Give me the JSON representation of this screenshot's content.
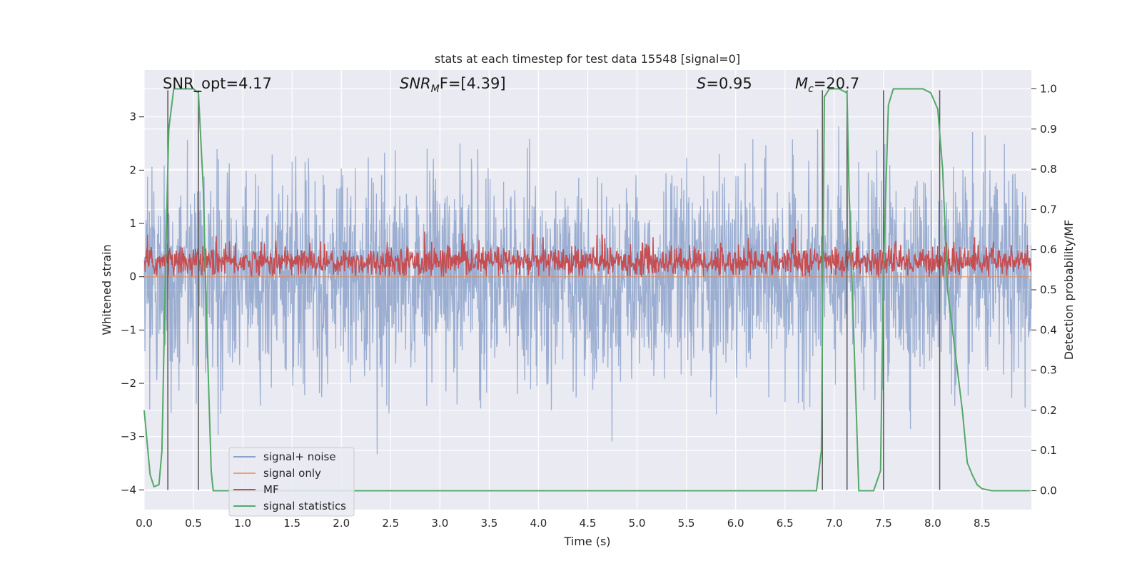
{
  "chart_data": {
    "type": "line",
    "title": "stats at each timestep for test data 15548 [signal=0]",
    "xlabel": "Time (s)",
    "ylabel_left": "Whitened strain",
    "ylabel_right": "Detection probability/MF",
    "xlim": [
      0.0,
      9.0
    ],
    "ylim_left": [
      -4.37,
      3.88
    ],
    "ylim_right": [
      -0.047,
      1.047
    ],
    "x_ticks": [
      "0.0",
      "0.5",
      "1.0",
      "1.5",
      "2.0",
      "2.5",
      "3.0",
      "3.5",
      "4.0",
      "4.5",
      "5.0",
      "5.5",
      "6.0",
      "6.5",
      "7.0",
      "7.5",
      "8.0",
      "8.5"
    ],
    "x_tick_values": [
      0.0,
      0.5,
      1.0,
      1.5,
      2.0,
      2.5,
      3.0,
      3.5,
      4.0,
      4.5,
      5.0,
      5.5,
      6.0,
      6.5,
      7.0,
      7.5,
      8.0,
      8.5
    ],
    "y_ticks_left": [
      "3",
      "2",
      "1",
      "0",
      "−1",
      "−2",
      "−3",
      "−4"
    ],
    "y_tick_values_left": [
      3,
      2,
      1,
      0,
      -1,
      -2,
      -3,
      -4
    ],
    "y_ticks_right": [
      "1.0",
      "0.9",
      "0.8",
      "0.7",
      "0.6",
      "0.5",
      "0.4",
      "0.3",
      "0.2",
      "0.1",
      "0.0"
    ],
    "y_tick_values_right": [
      1.0,
      0.9,
      0.8,
      0.7,
      0.6,
      0.5,
      0.4,
      0.3,
      0.2,
      0.1,
      0.0
    ],
    "grid": true,
    "legend_position": "lower-left",
    "annotations": {
      "snr_opt": "SNR_opt=4.17",
      "snr_mf_main": "SNR",
      "snr_mf_sub": "M",
      "snr_mf_tail": "F=[4.39]",
      "s_main": "S",
      "s_tail": "=0.95",
      "mc_main": "M",
      "mc_sub": "c",
      "mc_tail": "=20.7"
    },
    "series": [
      {
        "name": "signal+ noise",
        "color": "#4c72b0",
        "axis": "left",
        "style": "dense-noise",
        "x_range": [
          0.0,
          9.0
        ],
        "typical_range": [
          -1.8,
          1.7
        ],
        "extreme_range": [
          -3.85,
          3.55
        ]
      },
      {
        "name": "signal only",
        "color": "#dd8452",
        "axis": "left",
        "style": "flat",
        "x_range": [
          0.0,
          9.0
        ],
        "values": [
          0,
          0
        ]
      },
      {
        "name": "MF",
        "color": "#c44e52",
        "axis": "left",
        "style": "dense-noise",
        "x_range": [
          0.0,
          9.0
        ],
        "typical_range": [
          0.0,
          0.65
        ],
        "extreme_range": [
          0.0,
          0.9
        ]
      },
      {
        "name": "signal statistics",
        "color": "#55a868",
        "axis": "right",
        "x": [
          0.0,
          0.06,
          0.1,
          0.15,
          0.18,
          0.22,
          0.25,
          0.3,
          0.32,
          0.4,
          0.5,
          0.55,
          0.6,
          0.63,
          0.68,
          0.7,
          1.0,
          2.0,
          3.0,
          4.0,
          5.0,
          6.0,
          6.5,
          6.82,
          6.87,
          6.9,
          6.95,
          7.05,
          7.13,
          7.15,
          7.25,
          7.3,
          7.4,
          7.47,
          7.5,
          7.55,
          7.6,
          7.7,
          7.9,
          7.98,
          8.05,
          8.1,
          8.15,
          8.2,
          8.3,
          8.35,
          8.4,
          8.45,
          8.5,
          8.6,
          8.7,
          8.8,
          8.99
        ],
        "values": [
          0.2,
          0.04,
          0.01,
          0.015,
          0.1,
          0.6,
          0.9,
          1.0,
          1.0,
          1.0,
          1.0,
          0.99,
          0.75,
          0.45,
          0.05,
          0.0,
          0.0,
          0.0,
          0.0,
          0.0,
          0.0,
          0.0,
          0.0,
          0.0,
          0.1,
          0.98,
          1.0,
          1.0,
          0.99,
          0.75,
          0.0,
          0.0,
          0.0,
          0.05,
          0.55,
          0.96,
          1.0,
          1.0,
          1.0,
          0.99,
          0.95,
          0.8,
          0.5,
          0.4,
          0.2,
          0.07,
          0.04,
          0.015,
          0.005,
          0.0,
          0.0,
          0.0,
          0.0
        ]
      }
    ],
    "markers": {
      "color": "#555555",
      "x": [
        0.24,
        0.55,
        6.88,
        7.13,
        7.5,
        8.07
      ],
      "y_from_left": [
        -4.0,
        3.5
      ]
    }
  }
}
